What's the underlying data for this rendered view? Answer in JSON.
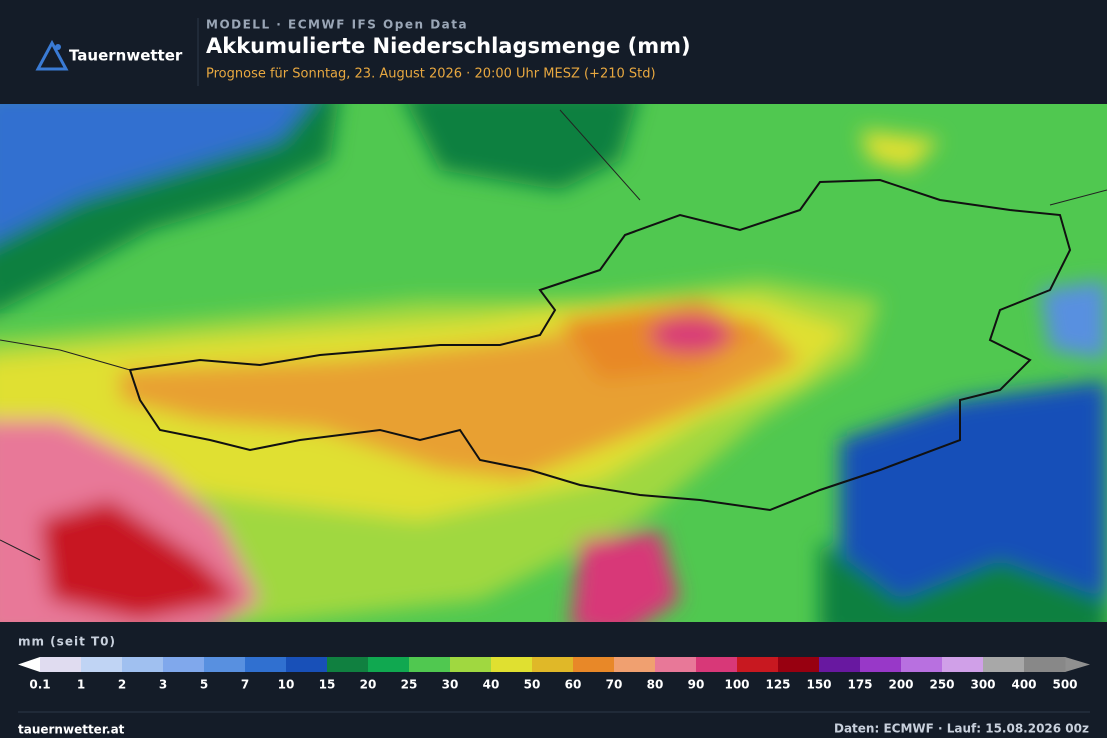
{
  "header": {
    "logo": "Tauernwetter",
    "kicker": "MODELL · ECMWF IFS Open Data",
    "title": "Akkumulierte Niederschlagsmenge (mm)",
    "subtitle": "Prognose für Sonntag, 23. August 2026 · 20:00 Uhr MESZ  (+210 Std)"
  },
  "legend": {
    "title": "mm (seit T0)",
    "labels": [
      "0.1",
      "1",
      "2",
      "3",
      "5",
      "7",
      "10",
      "15",
      "20",
      "25",
      "30",
      "40",
      "50",
      "60",
      "70",
      "80",
      "90",
      "100",
      "125",
      "150",
      "175",
      "200",
      "250",
      "300",
      "400",
      "500"
    ],
    "colors": [
      "#e0dcf0",
      "#c0d4f4",
      "#a0c0f0",
      "#80a8ec",
      "#5890e0",
      "#3070d0",
      "#1850b8",
      "#108040",
      "#10a850",
      "#50c850",
      "#a0d840",
      "#e0e030",
      "#e0b828",
      "#e88828",
      "#f0a070",
      "#e87898",
      "#d83878",
      "#c81820",
      "#980010",
      "#6818a0",
      "#9838c8",
      "#b870e0",
      "#d0a0e8",
      "#a8a8a8",
      "#888888"
    ],
    "under_color": "#ffffff",
    "over_color": "#909090"
  },
  "footer": {
    "site": "tauernwetter.at",
    "source": "Daten: ECMWF · Lauf: 15.08.2026 00z"
  }
}
